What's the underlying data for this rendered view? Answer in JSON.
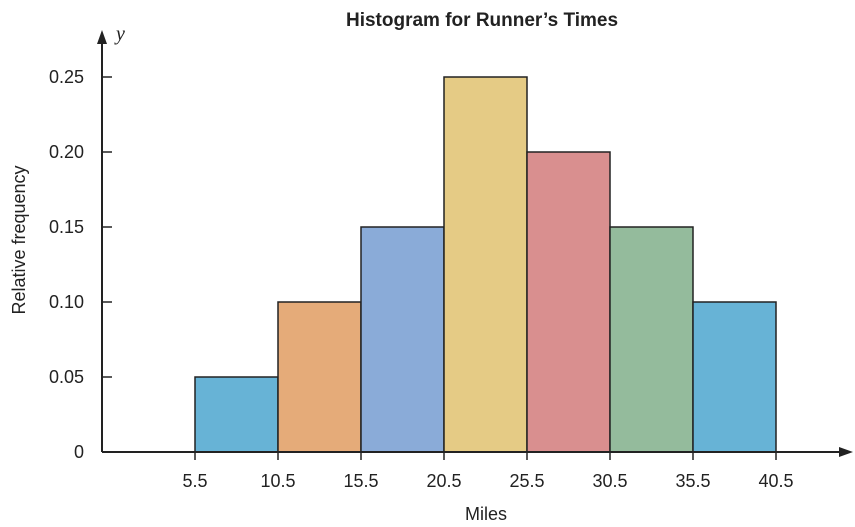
{
  "chart_data": {
    "type": "bar",
    "title": "Histogram for Runner’s Times",
    "xlabel": "Miles",
    "ylabel": "Relative frequency",
    "y_axis_var": "y",
    "x_ticks": [
      "5.5",
      "10.5",
      "15.5",
      "20.5",
      "25.5",
      "30.5",
      "35.5",
      "40.5"
    ],
    "y_ticks": [
      "0",
      "0.05",
      "0.10",
      "0.15",
      "0.20",
      "0.25"
    ],
    "bins": [
      {
        "start": 5.5,
        "end": 10.5,
        "value": 0.05,
        "color": "#67b3d6"
      },
      {
        "start": 10.5,
        "end": 15.5,
        "value": 0.1,
        "color": "#e5ab79"
      },
      {
        "start": 15.5,
        "end": 20.5,
        "value": 0.15,
        "color": "#8aabd8"
      },
      {
        "start": 20.5,
        "end": 25.5,
        "value": 0.25,
        "color": "#e5cb85"
      },
      {
        "start": 25.5,
        "end": 30.5,
        "value": 0.2,
        "color": "#d98f8f"
      },
      {
        "start": 30.5,
        "end": 35.5,
        "value": 0.15,
        "color": "#94bb9c"
      },
      {
        "start": 35.5,
        "end": 40.5,
        "value": 0.1,
        "color": "#67b3d6"
      }
    ],
    "ylim": [
      0,
      0.25
    ],
    "grid": false,
    "legend": "none"
  }
}
